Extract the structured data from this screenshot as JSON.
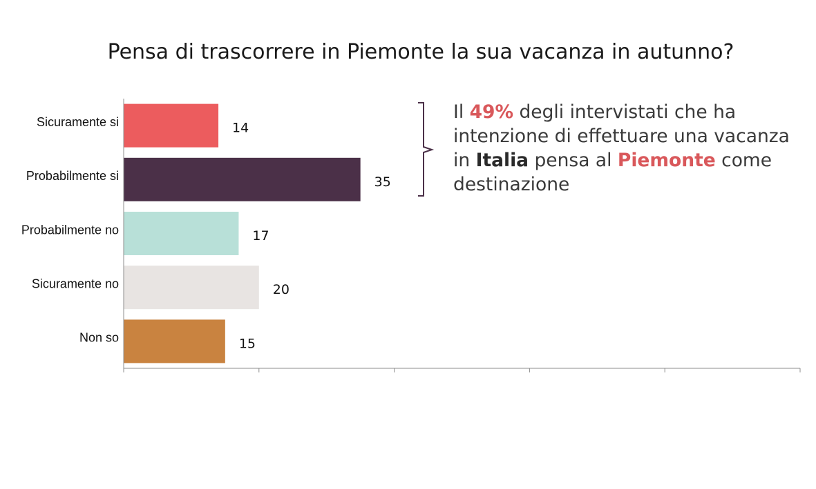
{
  "chart_data": {
    "type": "bar",
    "orientation": "horizontal",
    "title": "Pensa di trascorrere in Piemonte la sua vacanza in autunno?",
    "categories": [
      "Sicuramente si",
      "Probabilmente si",
      "Probabilmente no",
      "Sicuramente no",
      "Non so"
    ],
    "values": [
      14,
      35,
      17,
      20,
      15
    ],
    "colors": [
      "#ec5c5e",
      "#4b3048",
      "#b8e0d8",
      "#e8e4e2",
      "#c98340"
    ],
    "xlim": [
      0,
      100
    ],
    "x_tick_count": 6,
    "grid": false,
    "legend": "none"
  },
  "annotation": {
    "part1": "Il ",
    "highlight1": "49%",
    "part2": " degli intervistati che ha intenzione di effettuare una vacanza in ",
    "highlight2": "Italia",
    "part3": " pensa al ",
    "highlight3": "Piemonte",
    "part4": " come destinazione",
    "highlight_color": "#d9585b",
    "bracket_color": "#4b3048"
  }
}
